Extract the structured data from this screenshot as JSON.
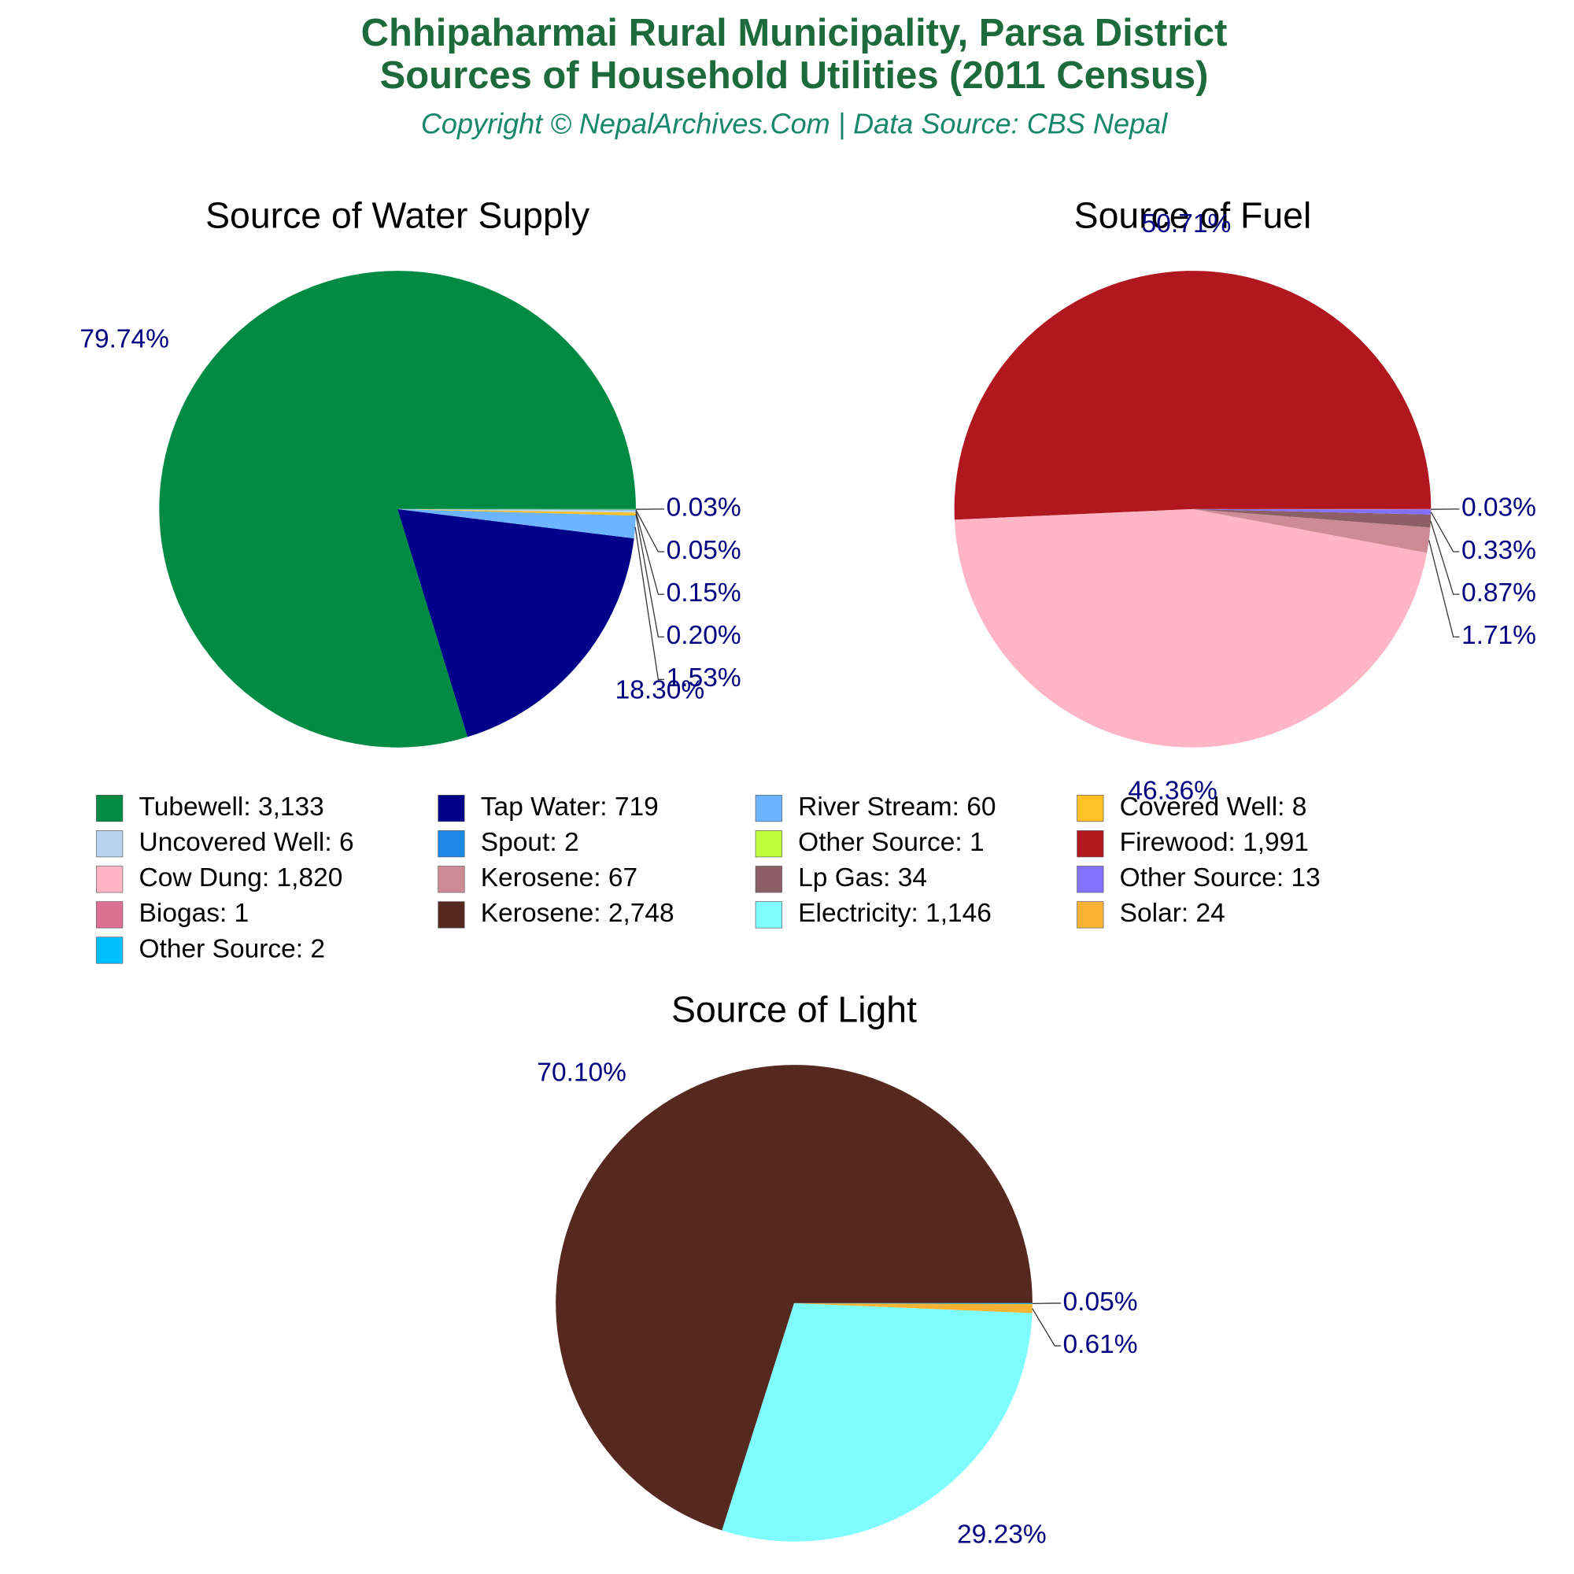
{
  "header": {
    "title": [
      "Chhipaharmai Rural Municipality, Parsa District",
      "Sources of Household Utilities (2011 Census)"
    ],
    "subtitle": "Copyright © NepalArchives.Com | Data Source: CBS Nepal"
  },
  "chart_data": [
    {
      "type": "pie",
      "title": "Source of Water Supply",
      "categories": [
        "Tubewell: 3,133",
        "Tap Water: 719",
        "River Stream: 60",
        "Covered Well: 8",
        "Uncovered Well: 6",
        "Spout: 2",
        "Other Source: 1"
      ],
      "values": [
        79.74,
        18.3,
        1.53,
        0.2,
        0.15,
        0.05,
        0.03
      ],
      "value_labels": [
        "79.74%",
        "18.30%",
        "1.53%",
        "0.20%",
        "0.15%",
        "0.05%",
        "0.03%"
      ],
      "colors": [
        "#008B45",
        "#00008B",
        "#6CB4FF",
        "#FFC125",
        "#B9D3EE",
        "#1E88E5",
        "#C0FF3E"
      ]
    },
    {
      "type": "pie",
      "title": "Source of Fuel",
      "categories": [
        "Firewood: 1,991",
        "Cow Dung: 1,820",
        "Kerosene: 67",
        "Lp Gas: 34",
        "Other Source: 13",
        "Biogas: 1"
      ],
      "values": [
        50.71,
        46.36,
        1.71,
        0.87,
        0.33,
        0.03
      ],
      "value_labels": [
        "50.71%",
        "46.36%",
        "1.71%",
        "0.87%",
        "0.33%",
        "0.03%"
      ],
      "colors": [
        "#B0171F",
        "#FFB5C5",
        "#CD8C95",
        "#8B5F65",
        "#8470FF",
        "#DB7093"
      ]
    },
    {
      "type": "pie",
      "title": "Source of Light",
      "categories": [
        "Kerosene: 2,748",
        "Electricity: 1,146",
        "Solar: 24",
        "Other Source: 2"
      ],
      "values": [
        70.1,
        29.23,
        0.61,
        0.05
      ],
      "value_labels": [
        "70.10%",
        "29.23%",
        "0.61%",
        "0.05%"
      ],
      "colors": [
        "#562920",
        "#7FFCFF",
        "#F9B234",
        "#00BFFF"
      ]
    }
  ]
}
